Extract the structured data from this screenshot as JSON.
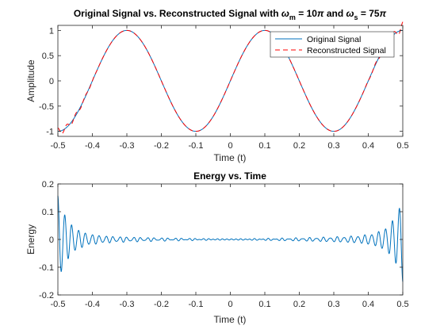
{
  "chart_data": [
    {
      "type": "line",
      "title_parts": {
        "lead": "Original Signal vs. Reconstructed Signal with ",
        "wm_symbol": "ω",
        "wm_sub": "m",
        "wm_eq": " = 10",
        "pi1": "π",
        "and_text": " and ",
        "ws_symbol": "ω",
        "ws_sub": "s",
        "ws_eq": " = 75",
        "pi2": "π"
      },
      "xlabel": "Time (t)",
      "ylabel": "Amplitude",
      "xlim": [
        -0.5,
        0.5
      ],
      "ylim": [
        -1.1,
        1.1
      ],
      "xticks": [
        "-0.5",
        "-0.4",
        "-0.3",
        "-0.2",
        "-0.1",
        "0",
        "0.1",
        "0.2",
        "0.3",
        "0.4",
        "0.5"
      ],
      "xtick_values": [
        -0.5,
        -0.4,
        -0.3,
        -0.2,
        -0.1,
        0,
        0.1,
        0.2,
        0.3,
        0.4,
        0.5
      ],
      "yticks": [
        "-1",
        "-0.5",
        "0",
        "0.5",
        "1"
      ],
      "ytick_values": [
        -1,
        -0.5,
        0,
        0.5,
        1
      ],
      "signal": {
        "function": "sin",
        "omega_over_pi": 5
      },
      "legend_location": "top-right",
      "series": [
        {
          "name": "Original Signal",
          "color": "#0072BD",
          "style": "solid"
        },
        {
          "name": "Reconstructed Signal",
          "color": "#FF0000",
          "style": "dashed"
        }
      ]
    },
    {
      "type": "line",
      "title": "Energy vs. Time",
      "xlabel": "Time (t)",
      "ylabel": "Energy",
      "xlim": [
        -0.5,
        0.5
      ],
      "ylim": [
        -0.2,
        0.2
      ],
      "xticks": [
        "-0.5",
        "-0.4",
        "-0.3",
        "-0.2",
        "-0.1",
        "0",
        "0.1",
        "0.2",
        "0.3",
        "0.4",
        "0.5"
      ],
      "xtick_values": [
        -0.5,
        -0.4,
        -0.3,
        -0.2,
        -0.1,
        0,
        0.1,
        0.2,
        0.3,
        0.4,
        0.5
      ],
      "yticks": [
        "-0.2",
        "-0.1",
        "0",
        "0.1",
        "0.2"
      ],
      "ytick_values": [
        -0.2,
        -0.1,
        0,
        0.1,
        0.2
      ],
      "series": [
        {
          "name": "Energy",
          "color": "#0072BD",
          "style": "solid",
          "peak_at_left_edge": 0.14,
          "peak_at_right_edge": -0.135,
          "oscillation_period": 0.02
        }
      ]
    }
  ]
}
